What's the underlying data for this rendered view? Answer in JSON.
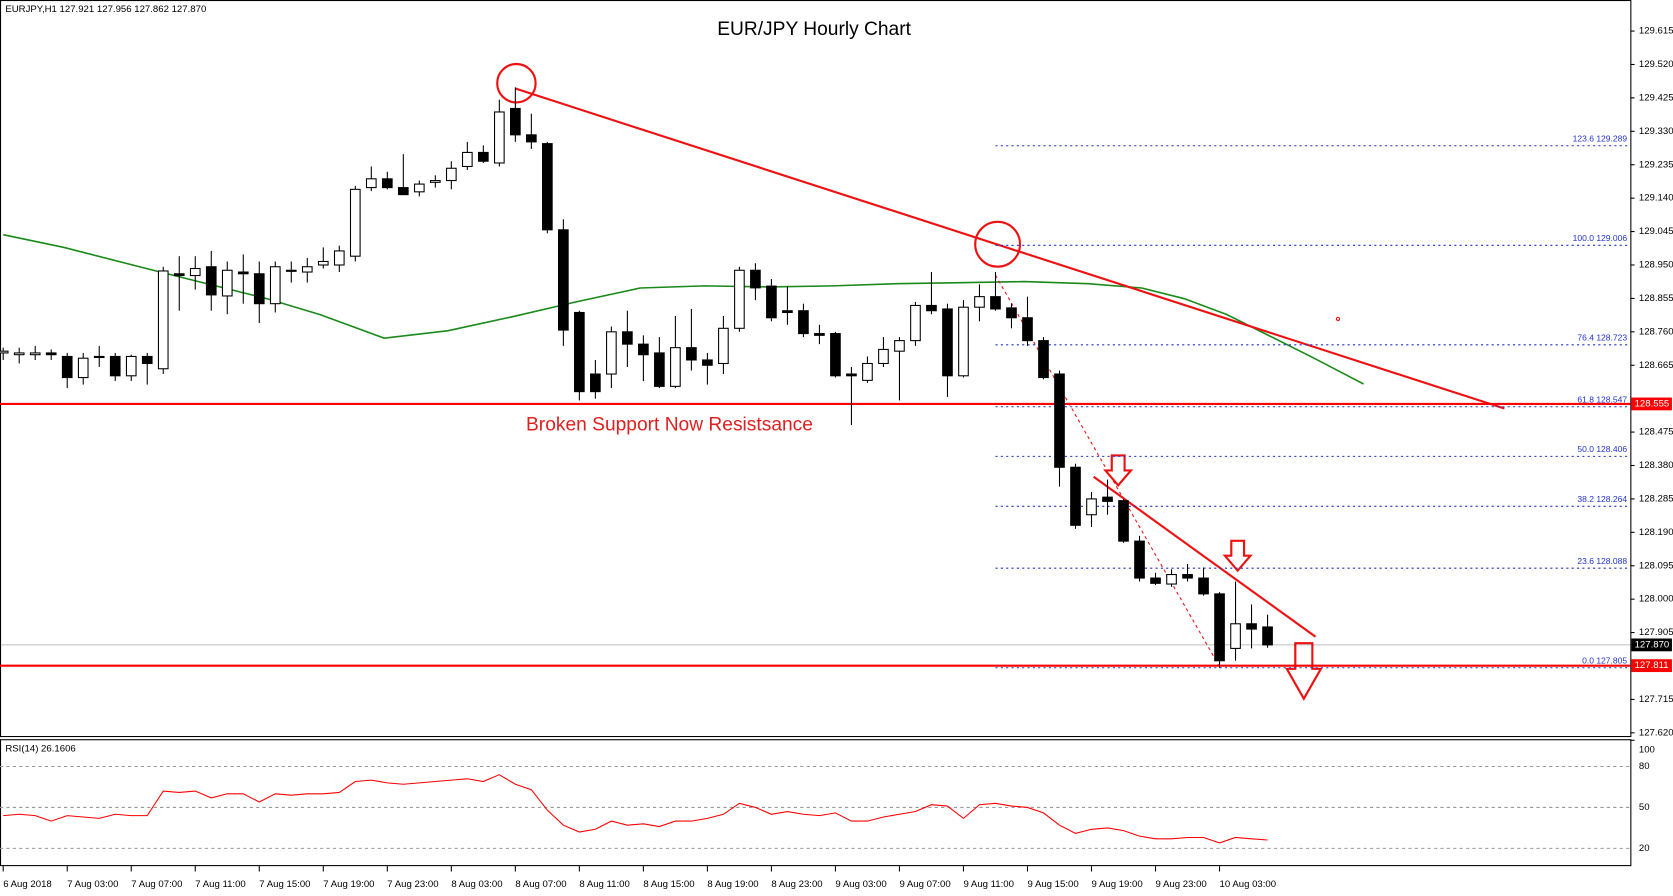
{
  "chart_data": [
    {
      "type": "candlestick",
      "title": "EUR/JPY Hourly Chart",
      "header": "EURJPY,H1  127.921 127.956 127.862 127.870",
      "annotation": "Broken Support Now Resistsance",
      "categories": [
        "6 Aug 2018",
        null,
        null,
        null,
        "7 Aug 03:00",
        null,
        null,
        null,
        "7 Aug 07:00",
        null,
        null,
        null,
        "7 Aug 11:00",
        null,
        null,
        null,
        "7 Aug 15:00",
        null,
        null,
        null,
        "7 Aug 19:00",
        null,
        null,
        null,
        "7 Aug 23:00",
        null,
        null,
        null,
        "8 Aug 03:00",
        null,
        null,
        null,
        "8 Aug 07:00",
        null,
        null,
        null,
        "8 Aug 11:00",
        null,
        null,
        null,
        "8 Aug 15:00",
        null,
        null,
        null,
        "8 Aug 19:00",
        null,
        null,
        null,
        "8 Aug 23:00",
        null,
        null,
        null,
        "9 Aug 03:00",
        null,
        null,
        null,
        "9 Aug 07:00",
        null,
        null,
        null,
        "9 Aug 11:00",
        null,
        null,
        null,
        "9 Aug 15:00",
        null,
        null,
        null,
        "9 Aug 19:00",
        null,
        null,
        null,
        "9 Aug 23:00",
        null,
        null,
        null,
        "10 Aug 03:00",
        null,
        null,
        null
      ],
      "open": [
        128.7,
        128.695,
        128.695,
        128.7,
        128.69,
        128.63,
        128.69,
        128.69,
        128.635,
        128.69,
        128.655,
        128.925,
        128.92,
        128.945,
        128.862,
        128.93,
        128.925,
        128.84,
        128.935,
        128.93,
        128.95,
        128.95,
        128.975,
        129.17,
        129.195,
        129.17,
        129.158,
        129.185,
        129.19,
        129.23,
        129.27,
        129.24,
        129.395,
        129.32,
        129.295,
        129.05,
        128.815,
        128.64,
        128.64,
        128.76,
        128.725,
        128.7,
        128.605,
        128.715,
        128.68,
        128.67,
        128.77,
        128.935,
        128.89,
        128.82,
        128.82,
        128.755,
        128.755,
        128.64,
        128.622,
        128.67,
        128.705,
        128.735,
        128.835,
        128.825,
        128.635,
        128.83,
        128.86,
        128.828,
        128.8,
        128.735,
        128.64,
        128.375,
        128.24,
        128.29,
        128.28,
        128.165,
        128.06,
        128.043,
        128.07,
        128.06,
        128.015,
        127.86,
        127.93,
        127.921
      ],
      "high": [
        128.715,
        128.715,
        128.72,
        128.71,
        128.7,
        128.7,
        128.72,
        128.7,
        128.695,
        128.7,
        128.945,
        128.975,
        128.975,
        128.99,
        128.96,
        128.98,
        128.96,
        128.96,
        128.96,
        128.97,
        129.0,
        129.005,
        129.175,
        129.23,
        129.215,
        129.265,
        129.19,
        129.205,
        129.245,
        129.3,
        129.29,
        129.42,
        129.455,
        129.38,
        129.3,
        129.08,
        128.82,
        128.68,
        128.775,
        128.82,
        128.75,
        128.745,
        128.805,
        128.825,
        128.7,
        128.805,
        128.945,
        128.955,
        128.91,
        128.89,
        128.84,
        128.78,
        128.76,
        128.66,
        128.69,
        128.745,
        128.745,
        128.845,
        128.93,
        128.84,
        128.85,
        128.895,
        128.93,
        128.84,
        128.86,
        128.745,
        128.65,
        128.385,
        128.305,
        128.34,
        128.285,
        128.18,
        128.075,
        128.085,
        128.1,
        128.09,
        128.02,
        128.05,
        127.985,
        127.956
      ],
      "low": [
        128.68,
        128.67,
        128.68,
        128.68,
        128.6,
        128.61,
        128.66,
        128.62,
        128.62,
        128.61,
        128.64,
        128.82,
        128.88,
        128.82,
        128.81,
        128.84,
        128.785,
        128.815,
        128.9,
        128.9,
        128.94,
        128.93,
        128.96,
        129.16,
        129.165,
        129.15,
        129.145,
        129.17,
        129.165,
        129.22,
        129.24,
        129.23,
        129.3,
        129.28,
        129.04,
        128.72,
        128.565,
        128.57,
        128.6,
        128.66,
        128.62,
        128.6,
        128.6,
        128.65,
        128.61,
        128.64,
        128.76,
        128.85,
        128.79,
        128.78,
        128.745,
        128.725,
        128.63,
        128.495,
        128.615,
        128.66,
        128.565,
        128.72,
        128.81,
        128.575,
        128.63,
        128.79,
        128.82,
        128.77,
        128.72,
        128.625,
        128.32,
        128.2,
        128.205,
        128.24,
        128.16,
        128.05,
        128.04,
        128.035,
        128.05,
        128.01,
        127.805,
        127.825,
        127.86,
        127.862
      ],
      "close": [
        128.705,
        128.7,
        128.7,
        128.695,
        128.63,
        128.685,
        128.69,
        128.635,
        128.69,
        128.67,
        128.933,
        128.92,
        128.94,
        128.865,
        128.935,
        128.925,
        128.84,
        128.945,
        128.935,
        128.945,
        128.96,
        128.99,
        129.165,
        129.195,
        129.17,
        129.15,
        129.18,
        129.19,
        129.225,
        129.27,
        129.245,
        129.385,
        129.32,
        129.3,
        129.05,
        128.765,
        128.59,
        128.59,
        128.76,
        128.725,
        128.695,
        128.605,
        128.715,
        128.68,
        128.665,
        128.77,
        128.935,
        128.885,
        128.8,
        128.815,
        128.755,
        128.75,
        128.635,
        128.635,
        128.67,
        128.71,
        128.735,
        128.835,
        128.82,
        128.635,
        128.83,
        128.86,
        128.825,
        128.8,
        128.735,
        128.63,
        128.375,
        128.21,
        128.285,
        128.278,
        128.165,
        128.06,
        128.045,
        128.07,
        128.06,
        128.015,
        127.825,
        127.93,
        127.915,
        127.87
      ],
      "up_color": "#ffffff",
      "down_color": "#000000",
      "ylim": [
        127.611,
        129.673
      ],
      "yticks": [
        129.615,
        {
          "value": 129.52,
          "label": "129.520"
        },
        129.425,
        {
          "value": 129.33,
          "label": "129.330"
        },
        129.235,
        {
          "value": 129.14,
          "label": "129.140"
        },
        129.045,
        {
          "value": 128.95,
          "label": "128.950"
        },
        128.855,
        {
          "value": 128.76,
          "label": "128.760"
        },
        128.665,
        128.475,
        {
          "value": 128.38,
          "label": "128.380"
        },
        128.285,
        {
          "value": 128.19,
          "label": "128.190"
        },
        128.095,
        {
          "value": 128.0,
          "label": "128.000"
        },
        127.905,
        127.715,
        {
          "value": 127.62,
          "label": "127.620"
        }
      ],
      "fib_levels": [
        {
          "label": "123.6 129.289",
          "value": 129.289
        },
        {
          "label": "100.0 129.006",
          "value": 129.006
        },
        {
          "label": "76.4 128.723",
          "value": 128.723
        },
        {
          "label": "61.8 128.547",
          "value": 128.547
        },
        {
          "label": "50.0 128.406",
          "value": 128.406
        },
        {
          "label": "38.2 128.264",
          "value": 128.264
        },
        {
          "label": "23.6 128.088",
          "value": 128.088
        },
        {
          "label": "0.0 127.805",
          "value": 127.805
        }
      ],
      "hlines": [
        {
          "value": 128.555,
          "color": "#ff0000"
        },
        {
          "value": 127.87,
          "label": "127.870",
          "color": "#000000"
        },
        {
          "value": 127.811,
          "color": "#ff0000"
        }
      ]
    },
    {
      "type": "line",
      "title": "RSI(14) 26.1606",
      "values": [
        44,
        45,
        44,
        40,
        44,
        43,
        42,
        45,
        44,
        44,
        62,
        61,
        62,
        57,
        60,
        60,
        54,
        60,
        59,
        60,
        60,
        61,
        69,
        70,
        68,
        67,
        68,
        69,
        70,
        71,
        69,
        74,
        67,
        63,
        48,
        37,
        32,
        34,
        40,
        37,
        38,
        36,
        40,
        40,
        42,
        45,
        53,
        50,
        45,
        47,
        45,
        44,
        46,
        40,
        40,
        43,
        45,
        47,
        52,
        51,
        42,
        52,
        53,
        51,
        50,
        46,
        37,
        31,
        34,
        35,
        33,
        29,
        27,
        27,
        28,
        28,
        24,
        28,
        27,
        26.1606
      ],
      "color": "#ff0000",
      "ylim": [
        7,
        100
      ],
      "yticks": [
        20,
        50,
        80,
        100
      ]
    }
  ]
}
